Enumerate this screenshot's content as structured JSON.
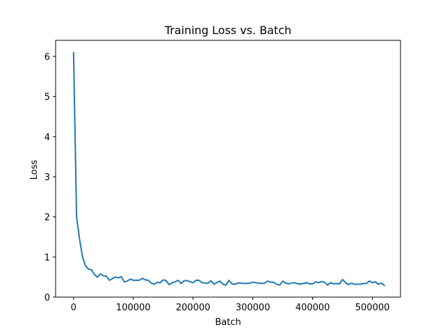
{
  "chart_data": {
    "type": "line",
    "title": "Training Loss vs. Batch",
    "xlabel": "Batch",
    "ylabel": "Loss",
    "xlim": [
      -30000,
      547000
    ],
    "ylim": [
      0,
      6.4
    ],
    "xticks": [
      0,
      100000,
      200000,
      300000,
      400000,
      500000
    ],
    "xtick_labels": [
      "0",
      "100000",
      "200000",
      "300000",
      "400000",
      "500000"
    ],
    "yticks": [
      0,
      1,
      2,
      3,
      4,
      5,
      6
    ],
    "ytick_labels": [
      "0",
      "1",
      "2",
      "3",
      "4",
      "5",
      "6"
    ],
    "grid": false,
    "legend": "none",
    "line_color": "#1f77b4",
    "series": [
      {
        "x": [
          0,
          5000,
          10000,
          15000,
          20000,
          25000,
          30000,
          35000,
          40000,
          45000,
          50000,
          55000,
          60000,
          65000,
          70000,
          75000,
          80000,
          85000,
          90000,
          95000,
          100000,
          105000,
          110000,
          115000,
          120000,
          125000,
          130000,
          135000,
          140000,
          145000,
          150000,
          155000,
          160000,
          165000,
          170000,
          175000,
          180000,
          185000,
          190000,
          195000,
          200000,
          205000,
          210000,
          215000,
          220000,
          225000,
          230000,
          235000,
          240000,
          245000,
          250000,
          255000,
          260000,
          265000,
          270000,
          275000,
          280000,
          285000,
          290000,
          295000,
          300000,
          305000,
          310000,
          315000,
          320000,
          325000,
          330000,
          335000,
          340000,
          345000,
          350000,
          355000,
          360000,
          365000,
          370000,
          375000,
          380000,
          385000,
          390000,
          395000,
          400000,
          405000,
          410000,
          415000,
          420000,
          425000,
          430000,
          435000,
          440000,
          445000,
          450000,
          455000,
          460000,
          465000,
          470000,
          475000,
          480000,
          485000,
          490000,
          495000,
          500000,
          505000,
          510000,
          515000,
          520000
        ],
        "values": [
          6.1,
          2.0,
          1.45,
          1.0,
          0.78,
          0.7,
          0.68,
          0.56,
          0.5,
          0.58,
          0.53,
          0.52,
          0.42,
          0.46,
          0.5,
          0.48,
          0.51,
          0.38,
          0.4,
          0.45,
          0.42,
          0.42,
          0.42,
          0.47,
          0.43,
          0.42,
          0.35,
          0.32,
          0.37,
          0.36,
          0.43,
          0.41,
          0.31,
          0.36,
          0.38,
          0.42,
          0.34,
          0.41,
          0.41,
          0.38,
          0.36,
          0.42,
          0.42,
          0.36,
          0.35,
          0.35,
          0.41,
          0.32,
          0.37,
          0.4,
          0.32,
          0.3,
          0.42,
          0.33,
          0.32,
          0.35,
          0.35,
          0.34,
          0.34,
          0.35,
          0.37,
          0.36,
          0.35,
          0.34,
          0.35,
          0.4,
          0.37,
          0.37,
          0.32,
          0.3,
          0.4,
          0.35,
          0.33,
          0.35,
          0.36,
          0.33,
          0.33,
          0.34,
          0.36,
          0.33,
          0.33,
          0.38,
          0.36,
          0.39,
          0.37,
          0.3,
          0.36,
          0.33,
          0.34,
          0.33,
          0.44,
          0.36,
          0.31,
          0.35,
          0.32,
          0.32,
          0.32,
          0.34,
          0.34,
          0.4,
          0.36,
          0.38,
          0.32,
          0.35,
          0.29
        ]
      }
    ]
  }
}
